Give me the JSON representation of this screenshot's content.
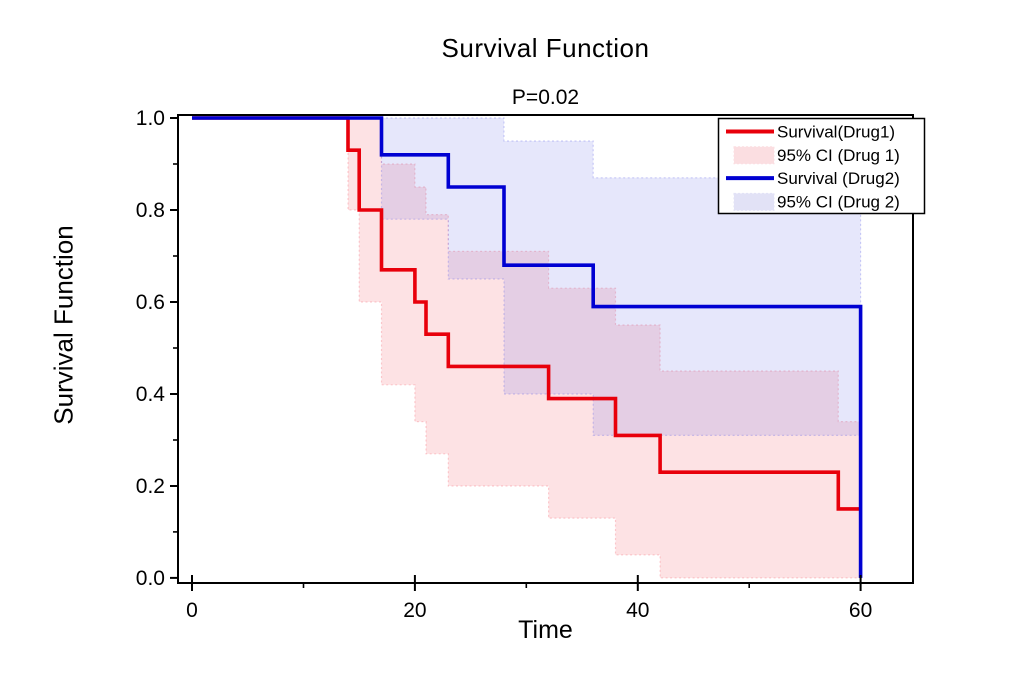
{
  "chart_data": {
    "type": "line",
    "subtype": "kaplan-meier-step-survival",
    "title": "Survival Function",
    "subtitle": "P=0.02",
    "xlabel": "Time",
    "ylabel": "Survival Function",
    "xlim": [
      -1.26,
      64.7
    ],
    "ylim": [
      -0.011,
      1.0065
    ],
    "grid": false,
    "legend_position": "top-right",
    "x_major_ticks": [
      0,
      20,
      40,
      60
    ],
    "x_tick_labels": [
      "0",
      "20",
      "40",
      "60"
    ],
    "x_minor_ticks": [
      10,
      30,
      50
    ],
    "y_major_ticks": [
      0.0,
      0.2,
      0.4,
      0.6,
      0.8,
      1.0
    ],
    "y_tick_labels": [
      "0.0",
      "0.2",
      "0.4",
      "0.6",
      "0.8",
      "1.0"
    ],
    "y_minor_ticks": [
      0.1,
      0.3,
      0.5,
      0.7,
      0.9
    ],
    "series": [
      {
        "name": "Survival(Drug1)",
        "color": "#e8000b",
        "type": "step",
        "events": [
          [
            0,
            1.0
          ],
          [
            14,
            0.93
          ],
          [
            15,
            0.8
          ],
          [
            17,
            0.67
          ],
          [
            20,
            0.6
          ],
          [
            21,
            0.53
          ],
          [
            23,
            0.46
          ],
          [
            32,
            0.39
          ],
          [
            38,
            0.31
          ],
          [
            42,
            0.23
          ],
          [
            58,
            0.15
          ]
        ],
        "end_time": 60,
        "end_drop_to_zero": false
      },
      {
        "name": "Survival (Drug2)",
        "color": "#0000d2",
        "type": "step",
        "events": [
          [
            0,
            1.0
          ],
          [
            17,
            0.92
          ],
          [
            23,
            0.85
          ],
          [
            28,
            0.68
          ],
          [
            36,
            0.59
          ]
        ],
        "end_time": 60,
        "end_drop_to_zero": true
      }
    ],
    "bands": [
      {
        "name": "95% CI (Drug 1)",
        "color": "#f4656f",
        "segments": [
          {
            "t": [
              14,
              15
            ],
            "lo": 0.8,
            "hi": 1.0
          },
          {
            "t": [
              15,
              17
            ],
            "lo": 0.6,
            "hi": 1.0
          },
          {
            "t": [
              17,
              20
            ],
            "lo": 0.42,
            "hi": 0.9
          },
          {
            "t": [
              20,
              21
            ],
            "lo": 0.34,
            "hi": 0.85
          },
          {
            "t": [
              21,
              23
            ],
            "lo": 0.27,
            "hi": 0.79
          },
          {
            "t": [
              23,
              32
            ],
            "lo": 0.2,
            "hi": 0.71
          },
          {
            "t": [
              32,
              38
            ],
            "lo": 0.13,
            "hi": 0.63
          },
          {
            "t": [
              38,
              42
            ],
            "lo": 0.05,
            "hi": 0.55
          },
          {
            "t": [
              42,
              58
            ],
            "lo": 0.0,
            "hi": 0.45
          },
          {
            "t": [
              58,
              60
            ],
            "lo": 0.0,
            "hi": 0.34
          }
        ]
      },
      {
        "name": "95% CI (Drug 2)",
        "color": "#6567e8",
        "segments": [
          {
            "t": [
              17,
              23
            ],
            "lo": 0.78,
            "hi": 1.0
          },
          {
            "t": [
              23,
              28
            ],
            "lo": 0.65,
            "hi": 1.0
          },
          {
            "t": [
              28,
              36
            ],
            "lo": 0.4,
            "hi": 0.95
          },
          {
            "t": [
              36,
              60
            ],
            "lo": 0.31,
            "hi": 0.87
          }
        ]
      }
    ],
    "legend": [
      {
        "label": "Survival(Drug1)",
        "swatch": "line",
        "color": "#e8000b"
      },
      {
        "label": "95% CI (Drug 1)",
        "swatch": "fill",
        "color": "#fbdee1"
      },
      {
        "label": "Survival (Drug2)",
        "swatch": "line",
        "color": "#0000d2"
      },
      {
        "label": "95% CI (Drug 2)",
        "swatch": "fill",
        "color": "#e2e2f6"
      }
    ]
  }
}
